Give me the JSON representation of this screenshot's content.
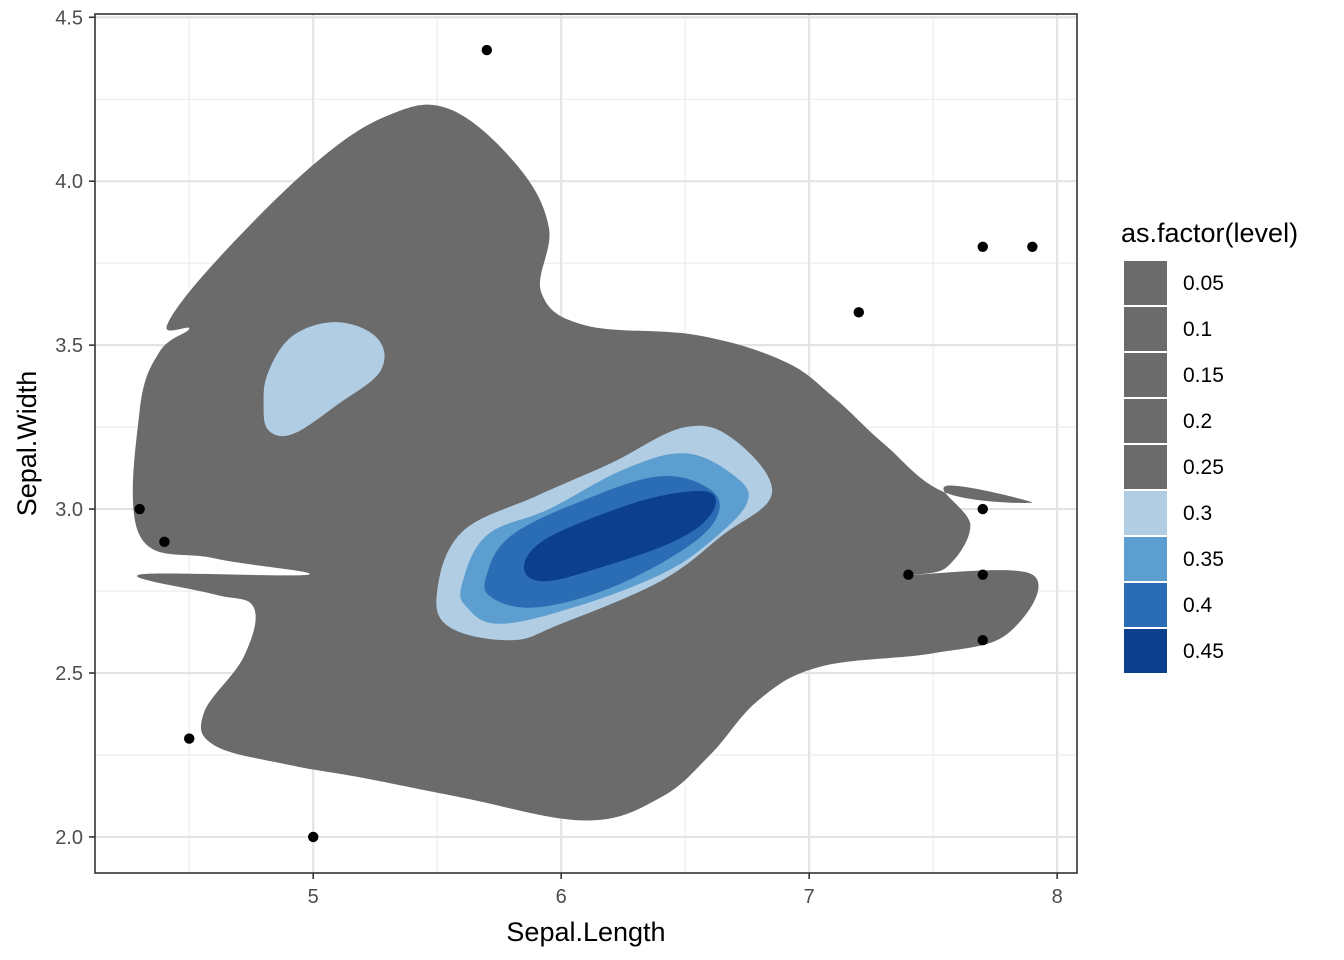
{
  "chart_data": {
    "type": "contour-density",
    "xlabel": "Sepal.Length",
    "ylabel": "Sepal.Width",
    "xlim": [
      4.12,
      8.08
    ],
    "ylim": [
      1.89,
      4.51
    ],
    "x_ticks": [
      5,
      6,
      7,
      8
    ],
    "x_tick_labels": [
      "5",
      "6",
      "7",
      "8"
    ],
    "y_ticks": [
      2.0,
      2.5,
      3.0,
      3.5,
      4.0,
      4.5
    ],
    "y_tick_labels": [
      "2.0",
      "2.5",
      "3.0",
      "3.5",
      "4.0",
      "4.5"
    ],
    "grid": true,
    "legend": {
      "title": "as.factor(level)",
      "position": "right",
      "items": [
        {
          "label": "0.05",
          "color": "#6b6b6b"
        },
        {
          "label": "0.1",
          "color": "#6b6b6b"
        },
        {
          "label": "0.15",
          "color": "#6b6b6b"
        },
        {
          "label": "0.2",
          "color": "#6b6b6b"
        },
        {
          "label": "0.25",
          "color": "#6b6b6b"
        },
        {
          "label": "0.3",
          "color": "#b0cde4"
        },
        {
          "label": "0.35",
          "color": "#5b9ecf"
        },
        {
          "label": "0.4",
          "color": "#2a6db4"
        },
        {
          "label": "0.45",
          "color": "#0c3f8c"
        }
      ]
    },
    "outlier_points": [
      {
        "x": 5.7,
        "y": 4.4
      },
      {
        "x": 7.7,
        "y": 3.8
      },
      {
        "x": 7.9,
        "y": 3.8
      },
      {
        "x": 7.2,
        "y": 3.6
      },
      {
        "x": 4.3,
        "y": 3.0
      },
      {
        "x": 4.4,
        "y": 2.9
      },
      {
        "x": 7.7,
        "y": 3.0
      },
      {
        "x": 7.7,
        "y": 2.8
      },
      {
        "x": 7.4,
        "y": 2.8
      },
      {
        "x": 7.7,
        "y": 2.6
      },
      {
        "x": 4.5,
        "y": 2.3
      },
      {
        "x": 5.0,
        "y": 2.0
      }
    ],
    "contours": [
      {
        "level": "0.05",
        "fill": "#6b6b6b",
        "points": [
          [
            4.41,
            3.56
          ],
          [
            4.6,
            3.75
          ],
          [
            5.0,
            4.05
          ],
          [
            5.3,
            4.2
          ],
          [
            5.55,
            4.22
          ],
          [
            5.82,
            4.05
          ],
          [
            5.95,
            3.86
          ],
          [
            5.92,
            3.66
          ],
          [
            6.1,
            3.56
          ],
          [
            6.55,
            3.53
          ],
          [
            6.9,
            3.45
          ],
          [
            7.1,
            3.34
          ],
          [
            7.3,
            3.2
          ],
          [
            7.55,
            3.05
          ],
          [
            7.9,
            3.02
          ],
          [
            7.55,
            3.07
          ],
          [
            7.65,
            2.95
          ],
          [
            7.55,
            2.82
          ],
          [
            7.4,
            2.8
          ],
          [
            7.9,
            2.8
          ],
          [
            7.8,
            2.62
          ],
          [
            7.5,
            2.56
          ],
          [
            7.05,
            2.52
          ],
          [
            6.8,
            2.42
          ],
          [
            6.6,
            2.25
          ],
          [
            6.4,
            2.12
          ],
          [
            6.1,
            2.05
          ],
          [
            5.6,
            2.12
          ],
          [
            5.2,
            2.18
          ],
          [
            4.9,
            2.22
          ],
          [
            4.6,
            2.28
          ],
          [
            4.56,
            2.38
          ],
          [
            4.72,
            2.55
          ],
          [
            4.76,
            2.7
          ],
          [
            4.6,
            2.74
          ],
          [
            4.3,
            2.8
          ],
          [
            4.98,
            2.8
          ],
          [
            4.6,
            2.85
          ],
          [
            4.3,
            2.92
          ],
          [
            4.3,
            3.3
          ],
          [
            4.38,
            3.48
          ],
          [
            4.5,
            3.55
          ]
        ]
      },
      {
        "level": "0.3",
        "fill": "#b0cde4",
        "points": [
          [
            4.82,
            3.24
          ],
          [
            4.92,
            3.23
          ],
          [
            5.1,
            3.32
          ],
          [
            5.27,
            3.42
          ],
          [
            5.26,
            3.52
          ],
          [
            5.1,
            3.57
          ],
          [
            4.92,
            3.53
          ],
          [
            4.82,
            3.42
          ],
          [
            4.8,
            3.32
          ]
        ]
      },
      {
        "level": "0.3",
        "fill": "#b0cde4",
        "points": [
          [
            5.5,
            2.75
          ],
          [
            5.6,
            2.93
          ],
          [
            5.9,
            3.04
          ],
          [
            6.2,
            3.14
          ],
          [
            6.5,
            3.25
          ],
          [
            6.7,
            3.21
          ],
          [
            6.85,
            3.05
          ],
          [
            6.65,
            2.92
          ],
          [
            6.4,
            2.78
          ],
          [
            6.0,
            2.65
          ],
          [
            5.8,
            2.6
          ],
          [
            5.55,
            2.64
          ]
        ]
      },
      {
        "level": "0.35",
        "fill": "#5b9ecf",
        "points": [
          [
            5.6,
            2.77
          ],
          [
            5.7,
            2.92
          ],
          [
            5.95,
            3.0
          ],
          [
            6.25,
            3.12
          ],
          [
            6.5,
            3.17
          ],
          [
            6.7,
            3.1
          ],
          [
            6.75,
            3.02
          ],
          [
            6.6,
            2.9
          ],
          [
            6.4,
            2.8
          ],
          [
            6.05,
            2.7
          ],
          [
            5.75,
            2.65
          ],
          [
            5.62,
            2.7
          ]
        ]
      },
      {
        "level": "0.4",
        "fill": "#2a6db4",
        "points": [
          [
            5.7,
            2.8
          ],
          [
            5.8,
            2.92
          ],
          [
            6.1,
            3.03
          ],
          [
            6.4,
            3.1
          ],
          [
            6.6,
            3.06
          ],
          [
            6.63,
            2.98
          ],
          [
            6.5,
            2.88
          ],
          [
            6.2,
            2.76
          ],
          [
            5.9,
            2.7
          ],
          [
            5.72,
            2.73
          ]
        ]
      },
      {
        "level": "0.45",
        "fill": "#0c3f8c",
        "points": [
          [
            5.85,
            2.82
          ],
          [
            5.92,
            2.9
          ],
          [
            6.15,
            2.98
          ],
          [
            6.4,
            3.04
          ],
          [
            6.6,
            3.05
          ],
          [
            6.6,
            2.98
          ],
          [
            6.45,
            2.9
          ],
          [
            6.15,
            2.82
          ],
          [
            5.93,
            2.78
          ]
        ]
      }
    ]
  }
}
